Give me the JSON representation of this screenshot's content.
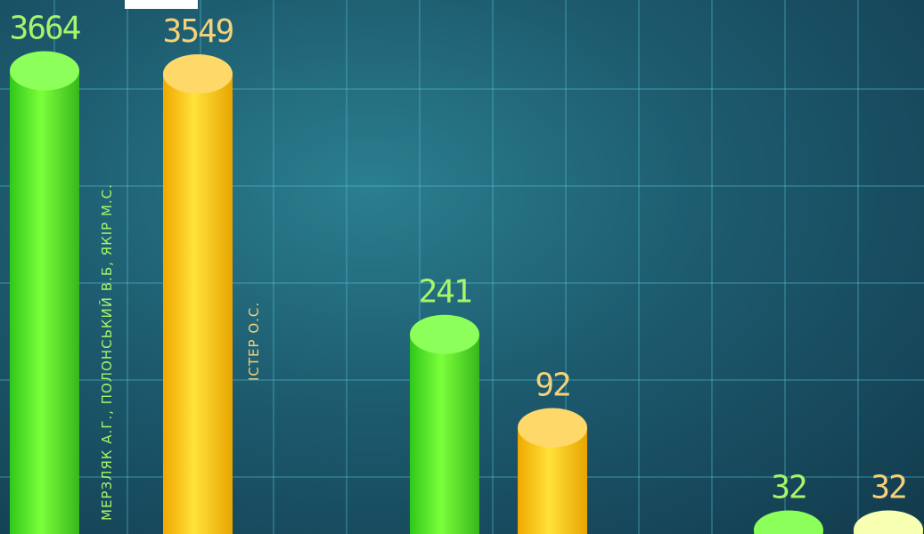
{
  "chart_data": {
    "type": "bar",
    "log_scale": true,
    "ylim": [
      28,
      4000
    ],
    "categories": [
      null,
      null,
      null
    ],
    "series": [
      {
        "name": "МЕРЗЛЯК А.Г., ПОЛОНСЬКИЙ В.Б, ЯКІР М.С.",
        "color": "#5ef02a",
        "label_color": "#a6f56a",
        "values": [
          3664,
          241,
          32
        ]
      },
      {
        "name": "ІСТЕР О.С.",
        "color": "#f5c400",
        "label_color": "#f5d27a",
        "values": [
          3549,
          92,
          32
        ]
      }
    ]
  }
}
